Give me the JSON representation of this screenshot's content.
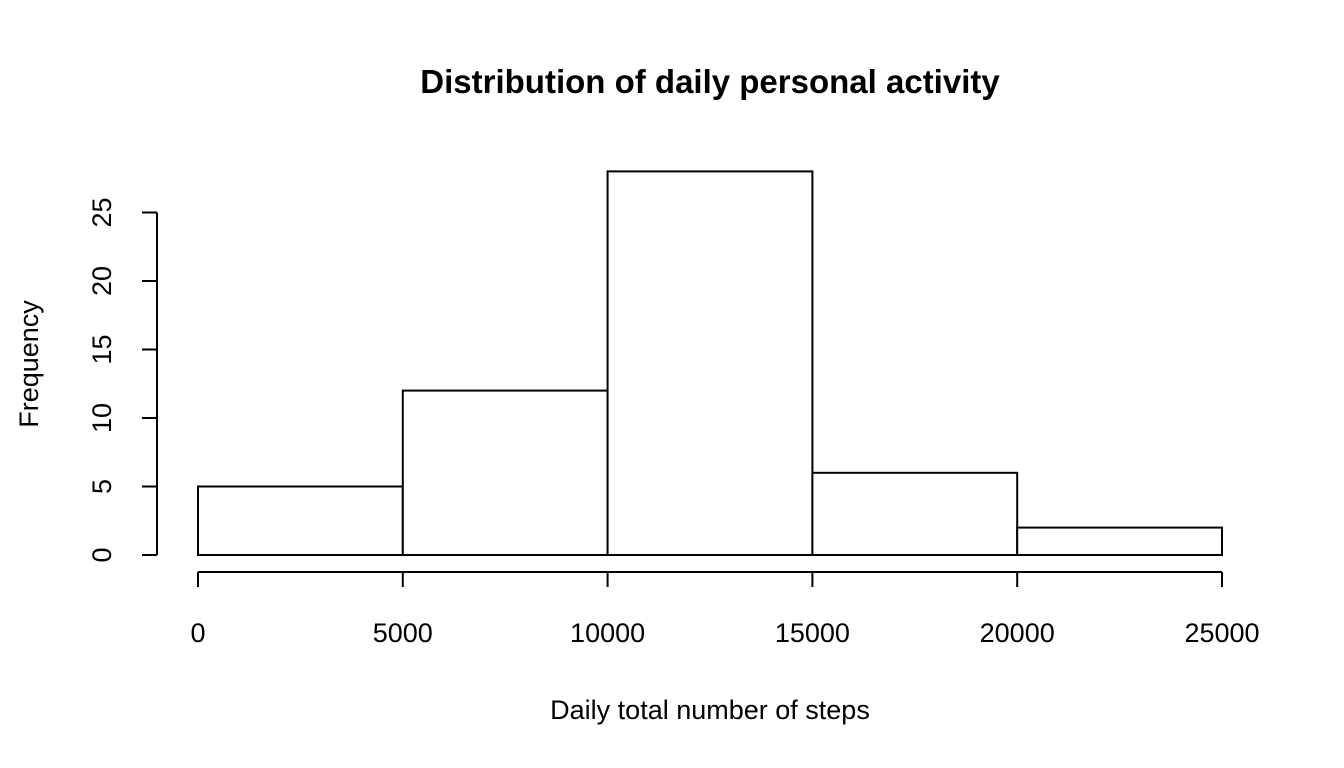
{
  "chart_data": {
    "type": "bar",
    "title": "Distribution of daily personal activity",
    "xlabel": "Daily total number of steps",
    "ylabel": "Frequency",
    "bins": [
      {
        "from": 0,
        "to": 5000,
        "count": 5
      },
      {
        "from": 5000,
        "to": 10000,
        "count": 12
      },
      {
        "from": 10000,
        "to": 15000,
        "count": 28
      },
      {
        "from": 15000,
        "to": 20000,
        "count": 6
      },
      {
        "from": 20000,
        "to": 25000,
        "count": 2
      }
    ],
    "x_ticks": [
      0,
      5000,
      10000,
      15000,
      20000,
      25000
    ],
    "y_ticks": [
      0,
      5,
      10,
      15,
      20,
      25
    ],
    "xlim": [
      0,
      25000
    ],
    "ylim": [
      0,
      28
    ],
    "grid": false,
    "bar_fill": "#ffffff",
    "bar_stroke": "#000000"
  }
}
